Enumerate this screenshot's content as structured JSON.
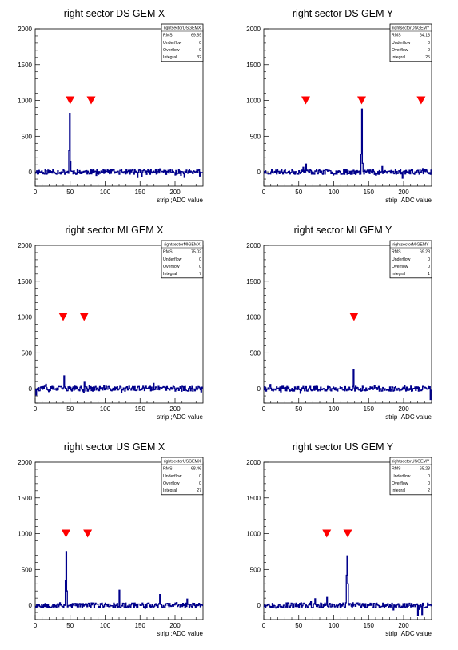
{
  "chart_data": [
    {
      "type": "line",
      "title": "right sector DS GEM X",
      "xlabel": "strip ;ADC value",
      "xlim": [
        0,
        240
      ],
      "ylim": [
        -200,
        2000
      ],
      "xticks": [
        "0",
        "50",
        "100",
        "150",
        "200"
      ],
      "yticks": [
        "0",
        "500",
        "1000",
        "1500",
        "2000"
      ],
      "stats": {
        "name": "rightsectorDSGEMX",
        "rows": [
          [
            "RMS",
            "69.59"
          ],
          [
            "Underflow",
            "0"
          ],
          [
            "Overflow",
            "0"
          ],
          [
            "Integral",
            "32"
          ]
        ]
      },
      "markers_x": [
        50,
        80
      ],
      "markers_y": 1000,
      "color": "#00008b",
      "marker_color": "#ff0000",
      "peaks": [
        [
          48,
          300
        ],
        [
          49,
          820
        ],
        [
          50,
          150
        ]
      ],
      "seed": 11
    },
    {
      "type": "line",
      "title": "right sector DS GEM Y",
      "xlabel": "strip ;ADC value",
      "xlim": [
        0,
        240
      ],
      "ylim": [
        -200,
        2000
      ],
      "xticks": [
        "0",
        "50",
        "100",
        "150",
        "200"
      ],
      "yticks": [
        "0",
        "500",
        "1000",
        "1500",
        "2000"
      ],
      "stats": {
        "name": "rightsectorDSGEMY",
        "rows": [
          [
            "RMS",
            "64.13"
          ],
          [
            "Underflow",
            "0"
          ],
          [
            "Overflow",
            "0"
          ],
          [
            "Integral",
            "25"
          ]
        ]
      },
      "markers_x": [
        60,
        140,
        225
      ],
      "markers_y": 1000,
      "color": "#00008b",
      "marker_color": "#ff0000",
      "peaks": [
        [
          139,
          250
        ],
        [
          140,
          880
        ],
        [
          141,
          120
        ],
        [
          60,
          110
        ]
      ],
      "seed": 23
    },
    {
      "type": "line",
      "title": "right sector MI GEM X",
      "xlabel": "strip ;ADC value",
      "xlim": [
        0,
        240
      ],
      "ylim": [
        -200,
        2000
      ],
      "xticks": [
        "0",
        "50",
        "100",
        "150",
        "200"
      ],
      "yticks": [
        "0",
        "500",
        "1000",
        "1500",
        "2000"
      ],
      "stats": {
        "name": "rightsectorMIGEMX",
        "rows": [
          [
            "RMS",
            "75.02"
          ],
          [
            "Underflow",
            "0"
          ],
          [
            "Overflow",
            "0"
          ],
          [
            "Integral",
            "7"
          ]
        ]
      },
      "markers_x": [
        40,
        70
      ],
      "markers_y": 1000,
      "color": "#00008b",
      "marker_color": "#ff0000",
      "peaks": [
        [
          41,
          180
        ],
        [
          70,
          90
        ]
      ],
      "seed": 37
    },
    {
      "type": "line",
      "title": "right sector MI GEM Y",
      "xlabel": "strip ;ADC value",
      "xlim": [
        0,
        240
      ],
      "ylim": [
        -200,
        2000
      ],
      "xticks": [
        "0",
        "50",
        "100",
        "150",
        "200"
      ],
      "yticks": [
        "0",
        "500",
        "1000",
        "1500",
        "2000"
      ],
      "stats": {
        "name": "rightsectorMIGEMY",
        "rows": [
          [
            "RMS",
            "69.28"
          ],
          [
            "Underflow",
            "0"
          ],
          [
            "Overflow",
            "0"
          ],
          [
            "Integral",
            "1"
          ]
        ]
      },
      "markers_x": [
        129
      ],
      "markers_y": 1000,
      "color": "#00008b",
      "marker_color": "#ff0000",
      "peaks": [
        [
          128,
          270
        ],
        [
          238,
          -150
        ]
      ],
      "seed": 41
    },
    {
      "type": "line",
      "title": "right sector US GEM X",
      "xlabel": "strip ;ADC value",
      "xlim": [
        0,
        240
      ],
      "ylim": [
        -200,
        2000
      ],
      "xticks": [
        "0",
        "50",
        "100",
        "150",
        "200"
      ],
      "yticks": [
        "0",
        "500",
        "1000",
        "1500",
        "2000"
      ],
      "stats": {
        "name": "rightsectorUSGEMX",
        "rows": [
          [
            "RMS",
            "68.46"
          ],
          [
            "Underflow",
            "0"
          ],
          [
            "Overflow",
            "0"
          ],
          [
            "Integral",
            "27"
          ]
        ]
      },
      "markers_x": [
        44,
        75
      ],
      "markers_y": 1000,
      "color": "#00008b",
      "marker_color": "#ff0000",
      "peaks": [
        [
          43,
          350
        ],
        [
          44,
          750
        ],
        [
          45,
          200
        ],
        [
          120,
          210
        ],
        [
          178,
          150
        ]
      ],
      "seed": 53
    },
    {
      "type": "line",
      "title": "right sector US GEM Y",
      "xlabel": "strip ;ADC value",
      "xlim": [
        0,
        240
      ],
      "ylim": [
        -200,
        2000
      ],
      "xticks": [
        "0",
        "50",
        "100",
        "150",
        "200"
      ],
      "yticks": [
        "0",
        "500",
        "1000",
        "1500",
        "2000"
      ],
      "stats": {
        "name": "rightsectorUSGEMY",
        "rows": [
          [
            "RMS",
            "65.28"
          ],
          [
            "Underflow",
            "0"
          ],
          [
            "Overflow",
            "0"
          ],
          [
            "Integral",
            "2"
          ]
        ]
      },
      "markers_x": [
        90,
        120
      ],
      "markers_y": 1000,
      "color": "#00008b",
      "marker_color": "#ff0000",
      "peaks": [
        [
          118,
          420
        ],
        [
          119,
          690
        ],
        [
          120,
          300
        ],
        [
          90,
          110
        ],
        [
          220,
          -140
        ],
        [
          226,
          -130
        ]
      ],
      "seed": 67
    }
  ]
}
